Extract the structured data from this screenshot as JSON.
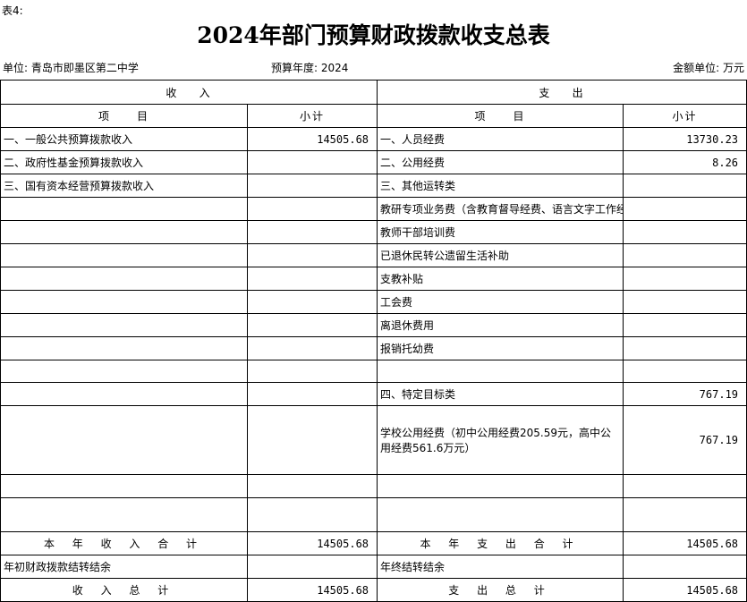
{
  "table_no": "表4:",
  "title": "2024年部门预算财政拨款收支总表",
  "unit": "单位: 青岛市即墨区第二中学",
  "year": "预算年度: 2024",
  "money_unit": "金额单位: 万元",
  "headers": {
    "income": "收    入",
    "expense": "支    出",
    "item": "项     目",
    "subtotal": "小计"
  },
  "rows": [
    {
      "in_item": "一、一般公共预算拨款收入",
      "in_val": "14505.68",
      "out_item": "一、人员经费",
      "out_val": "13730.23"
    },
    {
      "in_item": "二、政府性基金预算拨款收入",
      "in_val": "",
      "out_item": "二、公用经费",
      "out_val": "8.26"
    },
    {
      "in_item": "三、国有资本经营预算拨款收入",
      "in_val": "",
      "out_item": "三、其他运转类",
      "out_val": ""
    },
    {
      "in_item": "",
      "in_val": "",
      "out_item": "教研专项业务费（含教育督导经费、语言文字工作经费等）",
      "out_val": ""
    },
    {
      "in_item": "",
      "in_val": "",
      "out_item": "教师干部培训费",
      "out_val": ""
    },
    {
      "in_item": "",
      "in_val": "",
      "out_item": "已退休民转公遗留生活补助",
      "out_val": ""
    },
    {
      "in_item": "",
      "in_val": "",
      "out_item": "支教补贴",
      "out_val": ""
    },
    {
      "in_item": "",
      "in_val": "",
      "out_item": "工会费",
      "out_val": ""
    },
    {
      "in_item": "",
      "in_val": "",
      "out_item": "离退休费用",
      "out_val": ""
    },
    {
      "in_item": "",
      "in_val": "",
      "out_item": "报销托幼费",
      "out_val": ""
    },
    {
      "in_item": "",
      "in_val": "",
      "out_item": "",
      "out_val": ""
    },
    {
      "in_item": "",
      "in_val": "",
      "out_item": "四、特定目标类",
      "out_val": "767.19"
    },
    {
      "in_item": "",
      "in_val": "",
      "out_item": "学校公用经费（初中公用经费205.59元，高中公用经费561.6万元）",
      "out_val": "767.19"
    },
    {
      "in_item": "",
      "in_val": "",
      "out_item": "",
      "out_val": ""
    },
    {
      "in_item": "",
      "in_val": "",
      "out_item": "",
      "out_val": ""
    }
  ],
  "totals": [
    {
      "in_item": "本 年 收 入 合 计",
      "in_val": "14505.68",
      "out_item": "本 年 支 出 合 计",
      "out_val": "14505.68"
    },
    {
      "in_item": "年初财政拨款结转结余",
      "in_val": "",
      "out_item": "年终结转结余",
      "out_val": ""
    },
    {
      "in_item": "收 入 总 计",
      "in_val": "14505.68",
      "out_item": "支 出 总 计",
      "out_val": "14505.68"
    }
  ]
}
